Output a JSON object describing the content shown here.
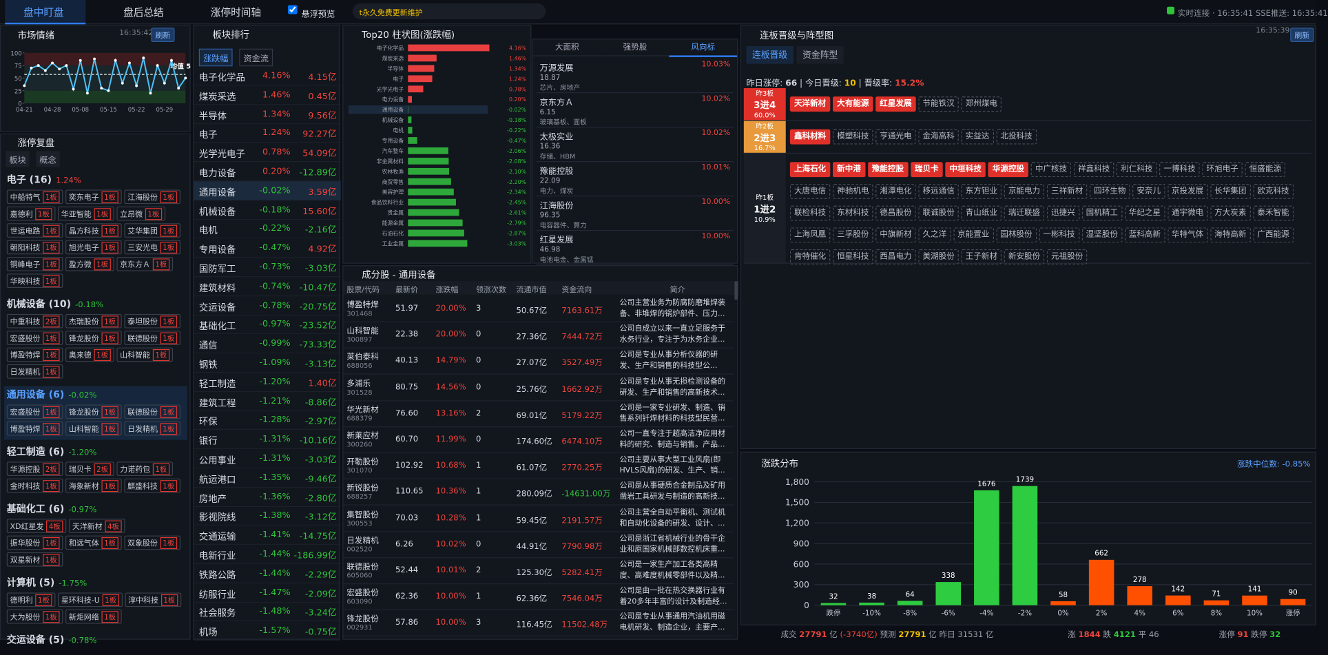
{
  "topbar": {
    "tabs": [
      "盘中盯盘",
      "盘后总结",
      "涨停时间轴"
    ],
    "checkbox": "悬浮预览",
    "marquee": "t永久免费更新维护",
    "status": "实时连接 · 16:35:41 SSE推送: 16:35:41"
  },
  "sentiment": {
    "title": "市场情绪",
    "time": "16:35:42",
    "button": "刷新",
    "mean_label": "均值 5",
    "chart": {
      "type": "line",
      "categories": [
        "04-21",
        null,
        null,
        null,
        "04-28",
        null,
        null,
        null,
        "05-08",
        null,
        null,
        null,
        "05-15",
        null,
        null,
        null,
        "05-22",
        null,
        null,
        null,
        "05-29",
        null,
        null,
        null
      ],
      "values": [
        35,
        70,
        75,
        65,
        80,
        68,
        75,
        28,
        85,
        20,
        88,
        30,
        25,
        85,
        40,
        80,
        35,
        90,
        20,
        75,
        40,
        85,
        30,
        50
      ],
      "color": "#4fc3f7",
      "ylim": [
        0,
        100
      ],
      "yticks": [
        0,
        25,
        50,
        75,
        100
      ]
    }
  },
  "limit_review": {
    "title": "涨停复盘",
    "tabs": [
      "板块",
      "概念"
    ],
    "groups": [
      {
        "name": "电子 (16)",
        "pct": "1.24%",
        "stocks": [
          [
            "中船特气",
            "1板"
          ],
          [
            "奕东电子",
            "1板"
          ],
          [
            "江海股份",
            "1板"
          ],
          [
            "嘉德利",
            "1板"
          ],
          [
            "华亚智能",
            "1板"
          ],
          [
            "立昂微",
            "1板"
          ],
          [
            "世运电路",
            "1板"
          ],
          [
            "晶方科技",
            "1板"
          ],
          [
            "艾华集团",
            "1板"
          ],
          [
            "朝阳科技",
            "1板"
          ],
          [
            "旭光电子",
            "1板"
          ],
          [
            "三安光电",
            "1板"
          ],
          [
            "铜峰电子",
            "1板"
          ],
          [
            "盈方微",
            "1板"
          ],
          [
            "京东方Ａ",
            "1板"
          ],
          [
            "华映科技",
            "1板"
          ]
        ]
      },
      {
        "name": "机械设备 (10)",
        "pct": "-0.18%",
        "stocks": [
          [
            "中重科技",
            "2板"
          ],
          [
            "杰瑞股份",
            "1板"
          ],
          [
            "泰坦股份",
            "1板"
          ],
          [
            "宏盛股份",
            "1板"
          ],
          [
            "锋龙股份",
            "1板"
          ],
          [
            "联德股份",
            "1板"
          ],
          [
            "博盈特焊",
            "1板"
          ],
          [
            "奥来德",
            "1板"
          ],
          [
            "山科智能",
            "1板"
          ],
          [
            "日发精机",
            "1板"
          ]
        ]
      },
      {
        "name": "通用设备 (6)",
        "pct": "-0.02%",
        "stocks": [
          [
            "宏盛股份",
            "1板"
          ],
          [
            "锋龙股份",
            "1板"
          ],
          [
            "联德股份",
            "1板"
          ],
          [
            "博盈特焊",
            "1板"
          ],
          [
            "山科智能",
            "1板"
          ],
          [
            "日发精机",
            "1板"
          ]
        ]
      },
      {
        "name": "轻工制造 (6)",
        "pct": "-1.20%",
        "stocks": [
          [
            "华源控股",
            "2板"
          ],
          [
            "瑞贝卡",
            "2板"
          ],
          [
            "力诺药包",
            "1板"
          ],
          [
            "金时科技",
            "1板"
          ],
          [
            "海象新材",
            "1板"
          ],
          [
            "麒盛科技",
            "1板"
          ]
        ]
      },
      {
        "name": "基础化工 (6)",
        "pct": "-0.97%",
        "stocks": [
          [
            "XD红星发",
            "4板"
          ],
          [
            "天洋新材",
            "4板"
          ],
          [
            "振华股份",
            "1板"
          ],
          [
            "和远气体",
            "1板"
          ],
          [
            "双象股份",
            "1板"
          ],
          [
            "双星新材",
            "1板"
          ]
        ]
      },
      {
        "name": "计算机 (5)",
        "pct": "-1.75%",
        "stocks": [
          [
            "德明利",
            "1板"
          ],
          [
            "星环科技-U",
            "1板"
          ],
          [
            "淳中科技",
            "1板"
          ],
          [
            "大为股份",
            "1板"
          ],
          [
            "新炬网络",
            "1板"
          ]
        ]
      },
      {
        "name": "交运设备 (5)",
        "pct": "-0.78%",
        "stocks": []
      }
    ]
  },
  "sector_rank": {
    "title": "板块排行",
    "tabs": [
      "涨跌幅",
      "资金流"
    ],
    "rows": [
      [
        "电子化学品",
        "4.16%",
        "4.15亿"
      ],
      [
        "煤炭采选",
        "1.46%",
        "0.45亿"
      ],
      [
        "半导体",
        "1.34%",
        "9.56亿"
      ],
      [
        "电子",
        "1.24%",
        "92.27亿"
      ],
      [
        "光学光电子",
        "0.78%",
        "54.09亿"
      ],
      [
        "电力设备",
        "0.20%",
        "-12.89亿"
      ],
      [
        "通用设备",
        "-0.02%",
        "3.59亿"
      ],
      [
        "机械设备",
        "-0.18%",
        "15.60亿"
      ],
      [
        "电机",
        "-0.22%",
        "-2.16亿"
      ],
      [
        "专用设备",
        "-0.47%",
        "4.92亿"
      ],
      [
        "国防军工",
        "-0.73%",
        "-3.03亿"
      ],
      [
        "建筑材料",
        "-0.74%",
        "-10.47亿"
      ],
      [
        "交运设备",
        "-0.78%",
        "-20.75亿"
      ],
      [
        "基础化工",
        "-0.97%",
        "-23.52亿"
      ],
      [
        "通信",
        "-0.99%",
        "-73.33亿"
      ],
      [
        "钢铁",
        "-1.09%",
        "-3.13亿"
      ],
      [
        "轻工制造",
        "-1.20%",
        "1.40亿"
      ],
      [
        "建筑工程",
        "-1.21%",
        "-8.86亿"
      ],
      [
        "环保",
        "-1.28%",
        "-2.97亿"
      ],
      [
        "银行",
        "-1.31%",
        "-10.16亿"
      ],
      [
        "公用事业",
        "-1.31%",
        "-3.03亿"
      ],
      [
        "航运港口",
        "-1.35%",
        "-9.46亿"
      ],
      [
        "房地产",
        "-1.36%",
        "-2.80亿"
      ],
      [
        "影视院线",
        "-1.38%",
        "-3.12亿"
      ],
      [
        "交通运输",
        "-1.41%",
        "-14.75亿"
      ],
      [
        "电新行业",
        "-1.44%",
        "-186.99亿"
      ],
      [
        "铁路公路",
        "-1.44%",
        "-2.29亿"
      ],
      [
        "纺服行业",
        "-1.47%",
        "-2.09亿"
      ],
      [
        "社会服务",
        "-1.48%",
        "-3.24亿"
      ],
      [
        "机场",
        "-1.57%",
        "-0.75亿"
      ]
    ]
  },
  "top20": {
    "title": "Top20 柱状图(涨跌幅)",
    "chart": {
      "type": "bar",
      "orientation": "horizontal",
      "categories": [
        "电子化学品",
        "煤炭采选",
        "半导体",
        "电子",
        "光学光电子",
        "电力设备",
        "通用设备",
        "机械设备",
        "电机",
        "专用设备",
        "汽车整车",
        "非金属材料",
        "农林牧渔",
        "商贸零售",
        "美容护理",
        "食品饮料行业",
        "贵金属",
        "能源金属",
        "石油石化",
        "工业金属"
      ],
      "values": [
        4.16,
        1.46,
        1.34,
        1.24,
        0.78,
        0.2,
        -0.02,
        -0.18,
        -0.22,
        -0.47,
        -2.06,
        -2.08,
        -2.1,
        -2.2,
        -2.34,
        -2.45,
        -2.61,
        -2.79,
        -2.87,
        -3.03
      ],
      "value_labels": [
        "4.16%",
        "1.46%",
        "1.34%",
        "1.24%",
        "0.78%",
        "0.20%",
        "-0.02%",
        "-0.18%",
        "-0.22%",
        "-0.47%",
        "-2.06%",
        "-2.08%",
        "-2.10%",
        "-2.20%",
        "-2.34%",
        "-2.45%",
        "-2.61%",
        "-2.79%",
        "-2.87%",
        "-3.03%"
      ],
      "colors": {
        "up": "#e84040",
        "down": "#2ea83a"
      }
    }
  },
  "vane": {
    "tabs": [
      "大面积",
      "强势股",
      "风向标"
    ],
    "items": [
      {
        "name": "万源发展",
        "pct": "10.03%",
        "price": "18.87",
        "tags": "芯片、房地产"
      },
      {
        "name": "京东方Ａ",
        "pct": "10.02%",
        "price": "6.15",
        "tags": "玻璃基板、面板"
      },
      {
        "name": "太极实业",
        "pct": "10.02%",
        "price": "16.36",
        "tags": "存储、HBM"
      },
      {
        "name": "豫能控股",
        "pct": "10.01%",
        "price": "22.09",
        "tags": "电力、煤炭"
      },
      {
        "name": "江海股份",
        "pct": "10.00%",
        "price": "96.35",
        "tags": "电容器件、算力"
      },
      {
        "name": "红星发展",
        "pct": "10.00%",
        "price": "46.98",
        "tags": "电池电金、金属锰"
      }
    ]
  },
  "constituents": {
    "title": "成分股 - 通用设备",
    "headers": [
      "股票/代码",
      "最新价",
      "涨跌幅",
      "领涨次数",
      "流通市值",
      "资金流向",
      "简介"
    ],
    "rows": [
      [
        "博盈特焊",
        "301468",
        "51.97",
        "20.00%",
        "3",
        "50.67亿",
        "7163.61万",
        "公司主营业务为防腐防磨堆焊装备、非堆焊的锅炉部件、压力..."
      ],
      [
        "山科智能",
        "300897",
        "22.38",
        "20.00%",
        "0",
        "27.36亿",
        "7444.72万",
        "公司自成立以来一直立足服务于水务行业，专注于为水务企业..."
      ],
      [
        "莱伯泰科",
        "688056",
        "40.13",
        "14.79%",
        "0",
        "27.07亿",
        "3527.49万",
        "公司是专业从事分析仪器的研发、生产和销售的科技型公..."
      ],
      [
        "多浦乐",
        "301528",
        "80.75",
        "14.56%",
        "0",
        "25.76亿",
        "1662.92万",
        "公司是专业从事无损检测设备的研发、生产和销售的高新技术..."
      ],
      [
        "华光新材",
        "688379",
        "76.60",
        "13.16%",
        "2",
        "69.01亿",
        "5179.22万",
        "公司是一家专业研发、制造、销售系列钎焊材料的科技型民营..."
      ],
      [
        "新莱应材",
        "300260",
        "60.70",
        "11.99%",
        "0",
        "174.60亿",
        "6474.10万",
        "公司一直专注于超高洁净应用材料的研究、制造与销售。产品..."
      ],
      [
        "开勒股份",
        "301070",
        "102.92",
        "10.68%",
        "1",
        "61.07亿",
        "2770.25万",
        "公司主要从事大型工业风扇(即HVLS风扇)的研发、生产、销..."
      ],
      [
        "新锐股份",
        "688257",
        "110.65",
        "10.36%",
        "1",
        "280.09亿",
        "-14631.00万",
        "公司是从事硬质合金制品及矿用凿岩工具研发与制造的高新技..."
      ],
      [
        "集智股份",
        "300553",
        "70.03",
        "10.28%",
        "1",
        "59.45亿",
        "2191.57万",
        "公司主营全自动平衡机、测试机和自动化设备的研发、设计、..."
      ],
      [
        "日发精机",
        "002520",
        "6.26",
        "10.02%",
        "0",
        "44.91亿",
        "7790.98万",
        "公司是浙江省机械行业的骨干企业和原国家机械部数控机床重..."
      ],
      [
        "联德股份",
        "605060",
        "52.44",
        "10.01%",
        "2",
        "125.30亿",
        "5282.41万",
        "公司是一家生产加工各类高精度、高难度机械零部件以及精..."
      ],
      [
        "宏盛股份",
        "603090",
        "62.36",
        "10.00%",
        "1",
        "62.36亿",
        "7546.04万",
        "公司是由一批在热交换器行业有着20多年丰富的设计及制造经..."
      ],
      [
        "锋龙股份",
        "002931",
        "57.86",
        "10.00%",
        "3",
        "116.45亿",
        "11502.48万",
        "公司是专业从事通用汽油机用磁电机研发、制造企业，主要产..."
      ]
    ]
  },
  "promotion": {
    "title": "连板晋级与阵型图",
    "time": "16:35:39",
    "button": "刷新",
    "tabs": [
      "连板晋级",
      "资金阵型"
    ],
    "summary": [
      "昨日涨停: ",
      "66",
      " | 今日晋级: ",
      "10",
      " | 晋级率: ",
      "15.2%"
    ],
    "tiers": [
      {
        "yesterday": "昨3板",
        "step": "3进4",
        "rate": "60.0%",
        "promoted": [
          "天洋新材",
          "大有能源",
          "红星发展"
        ],
        "failed": [
          "节能铁汉",
          "郑州煤电"
        ]
      },
      {
        "yesterday": "昨2板",
        "step": "2进3",
        "rate": "16.7%",
        "promoted": [
          "鑫科材料"
        ],
        "failed": [
          "模塑科技",
          "亨通光电",
          "金海高科",
          "实益达",
          "北投科技"
        ]
      },
      {
        "yesterday": "昨1板",
        "step": "1进2",
        "rate": "10.9%",
        "promoted": [
          "上海石化",
          "新中港",
          "豫能控股",
          "瑞贝卡",
          "中垣科技",
          "华源控股"
        ],
        "failed": [
          "中广核技",
          "祥鑫科技",
          "利仁科技",
          "一博科技",
          "环旭电子",
          "恒盛能源",
          "大唐电信",
          "神驰机电",
          "湘潭电化",
          "移远通信",
          "东方钽业",
          "京能电力",
          "三祥新材",
          "四环生物",
          "安奈儿",
          "京投发展",
          "长华集团",
          "欧克科技",
          "联检科技",
          "东材科技",
          "德昌股份",
          "联诚股份",
          "青山纸业",
          "瑞迁联盛",
          "迅捷兴",
          "国机精工",
          "华纪之星",
          "通宇微电",
          "方大炭素",
          "泰禾智能",
          "上海凤凰",
          "三孚股份",
          "中旗新材",
          "久之洋",
          "京能置业",
          "园林股份",
          "一彬科技",
          "湿坚股份",
          "蓝科高新",
          "华特气体",
          "海特高新",
          "广西能源",
          "肯特催化",
          "恒星科技",
          "西昌电力",
          "美湖股份",
          "王子新材",
          "新安股份",
          "元祖股份"
        ]
      }
    ]
  },
  "distribution": {
    "title": "涨跌分布",
    "median": "涨跌中位数: -0.85%",
    "chart": {
      "type": "bar",
      "categories": [
        "跌停",
        "-10%",
        "-8%",
        "-6%",
        "-4%",
        "-2%",
        "0%",
        "2%",
        "4%",
        "6%",
        "8%",
        "10%",
        "涨停"
      ],
      "values": [
        32,
        38,
        64,
        338,
        1676,
        1739,
        58,
        662,
        278,
        142,
        71,
        141,
        90
      ],
      "colors": [
        "#2ecc40",
        "#2ecc40",
        "#2ecc40",
        "#2ecc40",
        "#2ecc40",
        "#2ecc40",
        "#ff5000",
        "#ff5000",
        "#ff5000",
        "#ff5000",
        "#ff5000",
        "#ff5000",
        "#ff5000"
      ],
      "ylim": [
        0,
        1800
      ],
      "yticks": [
        0,
        300,
        600,
        900,
        {
          "value": 1200,
          "label": "1,200"
        },
        {
          "value": 1500,
          "label": "1,500"
        },
        {
          "value": 1800,
          "label": "1,800"
        }
      ],
      "grid": true
    }
  },
  "footer": {
    "turnover": [
      "成交 ",
      "27791",
      " 亿 ",
      "(-3740亿)",
      " 预测 ",
      "27791",
      " 亿 昨日 31531 亿"
    ],
    "breadth": [
      "涨 ",
      "1844",
      " 跌 ",
      "4121",
      " 平 46"
    ],
    "limits": [
      "涨停 ",
      "91",
      " 跌停 ",
      "32"
    ]
  }
}
